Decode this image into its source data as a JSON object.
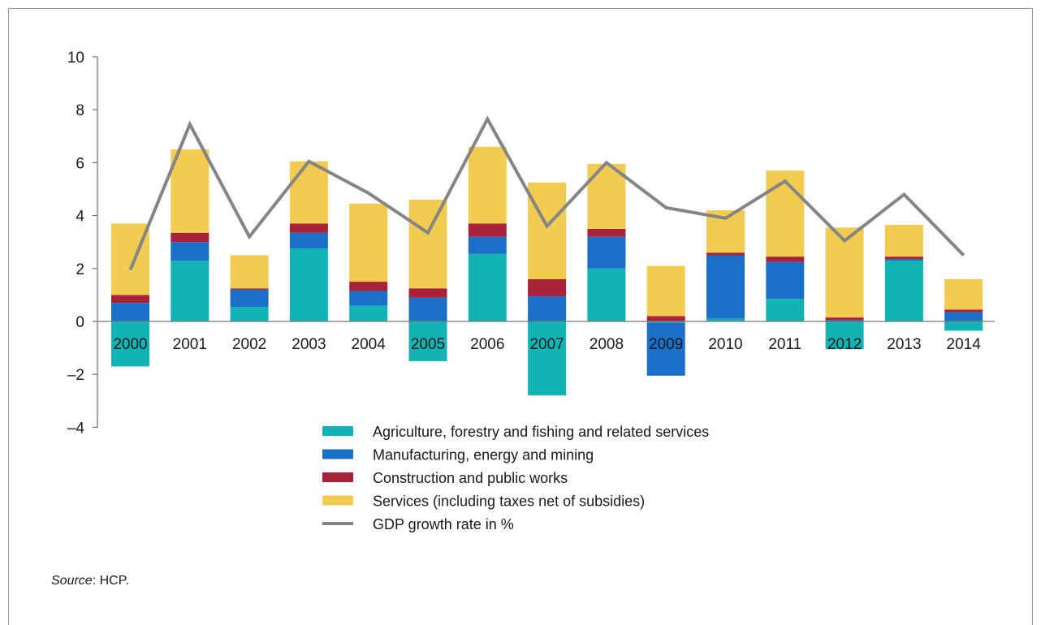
{
  "chart_data": {
    "type": "bar",
    "stacked": true,
    "categories": [
      "2000",
      "2001",
      "2002",
      "2003",
      "2004",
      "2005",
      "2006",
      "2007",
      "2008",
      "2009",
      "2010",
      "2011",
      "2012",
      "2013",
      "2014"
    ],
    "ylim": [
      -4,
      10
    ],
    "yticks": [
      "10",
      "8",
      "6",
      "4",
      "2",
      "0",
      "–2",
      "–4"
    ],
    "ytick_values": [
      10,
      8,
      6,
      4,
      2,
      0,
      -2,
      -4
    ],
    "series": [
      {
        "name": "Agriculture, forestry and fishing and related services",
        "color": "#12b3b3",
        "values": [
          -1.7,
          2.3,
          0.55,
          2.75,
          0.6,
          -1.5,
          2.55,
          -2.8,
          2.0,
          -0.05,
          0.1,
          0.85,
          -1.05,
          2.3,
          -0.35
        ]
      },
      {
        "name": "Manufacturing, energy and mining",
        "color": "#1a70c9",
        "values": [
          0.7,
          0.7,
          0.65,
          0.6,
          0.55,
          0.9,
          0.65,
          0.95,
          1.2,
          -2.0,
          2.4,
          1.4,
          0.05,
          0.05,
          0.35
        ]
      },
      {
        "name": "Construction and public works",
        "color": "#a8223a",
        "values": [
          0.3,
          0.35,
          0.05,
          0.35,
          0.35,
          0.35,
          0.5,
          0.65,
          0.3,
          0.2,
          0.1,
          0.2,
          0.1,
          0.1,
          0.1
        ]
      },
      {
        "name": "Services (including taxes net of subsidies)",
        "color": "#f2cb51",
        "values": [
          2.7,
          3.15,
          1.25,
          2.35,
          2.95,
          3.35,
          2.9,
          3.65,
          2.45,
          1.9,
          1.6,
          3.25,
          3.4,
          1.2,
          1.15
        ]
      }
    ],
    "line": {
      "name": "GDP growth rate in %",
      "color": "#858585",
      "values": [
        1.95,
        7.45,
        3.2,
        6.05,
        4.85,
        3.35,
        7.65,
        3.6,
        6.0,
        4.3,
        3.9,
        5.3,
        3.05,
        4.8,
        2.5
      ]
    },
    "legend_position": "bottom-center",
    "grid": false
  },
  "source": {
    "label": "Source",
    "value": ": HCP."
  }
}
